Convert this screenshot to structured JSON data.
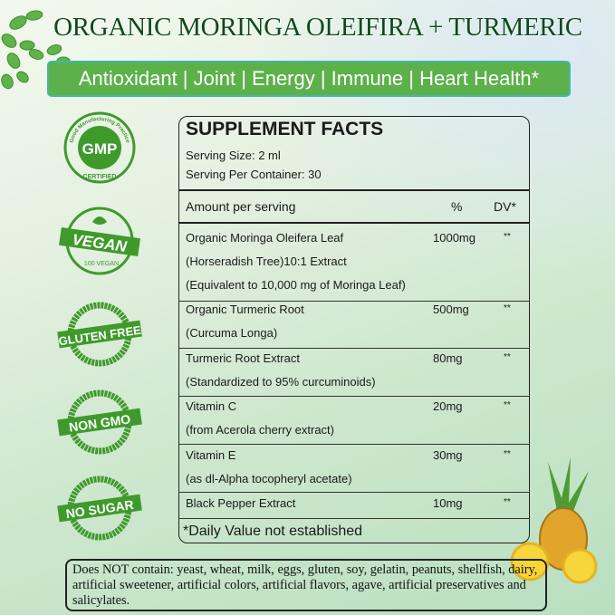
{
  "title": "ORGANIC MORINGA OLEIFIRA + TURMERIC",
  "banner": "Antioxidant | Joint | Energy | Immune | Heart Health*",
  "badges": [
    {
      "icon": "gmp-certified-badge",
      "text": "GMP",
      "top": "Good Manufacturing Practice",
      "bottom": "CERTIFIED"
    },
    {
      "icon": "vegan-badge",
      "text": "VEGAN",
      "bottom": "100 VEGAN"
    },
    {
      "icon": "gluten-free-badge",
      "text": "GLUTEN FREE"
    },
    {
      "icon": "non-gmo-badge",
      "text": "NON GMO"
    },
    {
      "icon": "no-sugar-badge",
      "text": "NO SUGAR"
    }
  ],
  "facts": {
    "heading": "SUPPLEMENT FACTS",
    "serving_size": "Serving Size: 2 ml",
    "servings_per_container": "Serving Per Container: 30",
    "col_amount": "Amount per serving",
    "col_pct": "%",
    "col_dv": "DV*",
    "rows": [
      {
        "lines": [
          "Organic Moringa Oleifera Leaf",
          "(Horseradish Tree)10:1 Extract",
          "(Equivalent to 10,000 mg of Moringa Leaf)"
        ],
        "amount": "1000mg",
        "dv": "**"
      },
      {
        "lines": [
          "Organic Turmeric Root",
          "(Curcuma Longa)"
        ],
        "amount": "500mg",
        "dv": "**"
      },
      {
        "lines": [
          "Turmeric Root Extract",
          "(Standardized to 95% curcuminoids)"
        ],
        "amount": "80mg",
        "dv": "**"
      },
      {
        "lines": [
          "Vitamin C",
          "(from Acerola cherry extract)"
        ],
        "amount": "20mg",
        "dv": "**"
      },
      {
        "lines": [
          "Vitamin E",
          "(as dl-Alpha tocopheryl acetate)"
        ],
        "amount": "30mg",
        "dv": "**"
      },
      {
        "lines": [
          "Black Pepper Extract"
        ],
        "amount": "10mg",
        "dv": "**"
      }
    ],
    "footnote": "*Daily Value not established"
  },
  "note": "Does NOT contain: yeast, wheat, milk, eggs, gluten, soy, gelatin, peanuts, shellfish, dairy, artificial sweetener, artificial colors, artificial flavors, agave,  artificial preservatives and salicylates.",
  "colors": {
    "brand_green": "#5db14a",
    "badge_green": "#3f9a2c",
    "title_green": "#0f4a1c"
  }
}
